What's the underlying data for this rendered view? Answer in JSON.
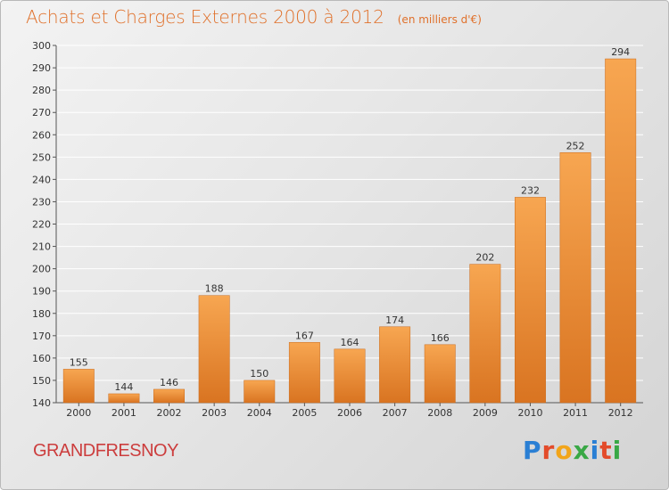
{
  "header": {
    "title": "Achats et Charges Externes 2000 à 2012",
    "unit": "(en milliers d'€)"
  },
  "footer": {
    "place": "GRANDFRESNOY",
    "logo": "Proxiti",
    "logo_colors": [
      "#2a7fd4",
      "#e34b2a",
      "#f2a51a",
      "#39a845",
      "#2a7fd4",
      "#e34b2a",
      "#39a845"
    ]
  },
  "colors": {
    "bar_light": "#f7a651",
    "bar_dark": "#d97421",
    "title": "#e0702a",
    "place": "#cc3d3d",
    "grid": "#ffffff"
  },
  "chart_data": {
    "type": "bar",
    "title": "Achats et Charges Externes 2000 à 2012",
    "subtitle": "(en milliers d'€)",
    "xlabel": "",
    "ylabel": "",
    "categories": [
      "2000",
      "2001",
      "2002",
      "2003",
      "2004",
      "2005",
      "2006",
      "2007",
      "2008",
      "2009",
      "2010",
      "2011",
      "2012"
    ],
    "values": [
      155,
      144,
      146,
      188,
      150,
      167,
      164,
      174,
      166,
      202,
      232,
      252,
      294
    ],
    "ylim": [
      140,
      300
    ],
    "yticks": [
      140,
      150,
      160,
      170,
      180,
      190,
      200,
      210,
      220,
      230,
      240,
      250,
      260,
      270,
      280,
      290,
      300
    ],
    "grid": true,
    "legend": "none"
  }
}
